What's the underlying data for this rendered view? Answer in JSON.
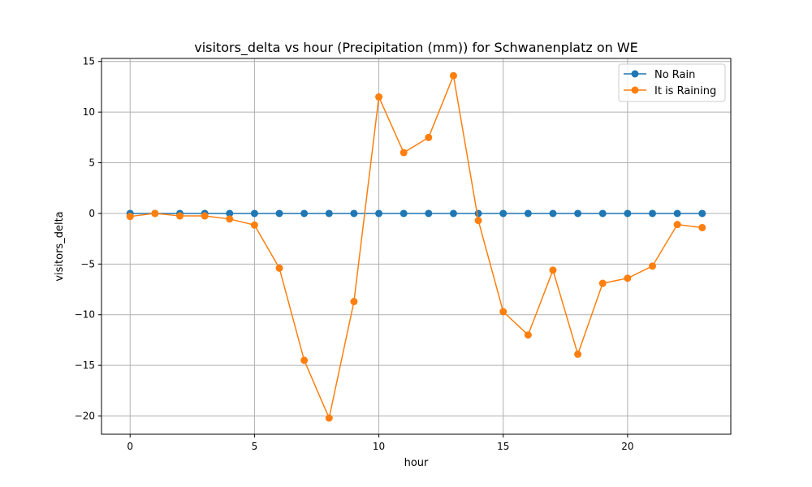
{
  "chart_data": {
    "type": "line",
    "title": "visitors_delta vs hour (Precipitation (mm)) for Schwanenplatz on WE",
    "xlabel": "hour",
    "ylabel": "visitors_delta",
    "xlim": [
      -1.15,
      24.15
    ],
    "ylim": [
      -21.8,
      15.3
    ],
    "xticks": [
      0,
      5,
      10,
      15,
      20
    ],
    "yticks": [
      -20,
      -15,
      -10,
      -5,
      0,
      5,
      10,
      15
    ],
    "ytick_labels": [
      "−20",
      "−15",
      "−10",
      "−5",
      "0",
      "5",
      "10",
      "15"
    ],
    "grid": true,
    "legend_position": "top-right",
    "x": [
      0,
      1,
      2,
      3,
      4,
      5,
      6,
      7,
      8,
      9,
      10,
      11,
      12,
      13,
      14,
      15,
      16,
      17,
      18,
      19,
      20,
      21,
      22,
      23
    ],
    "series": [
      {
        "name": "No Rain",
        "color": "#1f77b4",
        "values": [
          0,
          0,
          0,
          0,
          0,
          0,
          0,
          0,
          0,
          0,
          0,
          0,
          0,
          0,
          0,
          0,
          0,
          0,
          0,
          0,
          0,
          0,
          0,
          0
        ]
      },
      {
        "name": "It is Raining",
        "color": "#ff7f0e",
        "values": [
          -0.3,
          0,
          -0.25,
          -0.25,
          -0.55,
          -1.15,
          -5.4,
          -14.5,
          -20.2,
          -8.7,
          11.5,
          6.0,
          7.5,
          13.6,
          -0.7,
          -9.7,
          -12.0,
          -5.6,
          -13.9,
          -6.9,
          -6.4,
          -5.2,
          -1.1,
          -1.4
        ]
      }
    ]
  }
}
